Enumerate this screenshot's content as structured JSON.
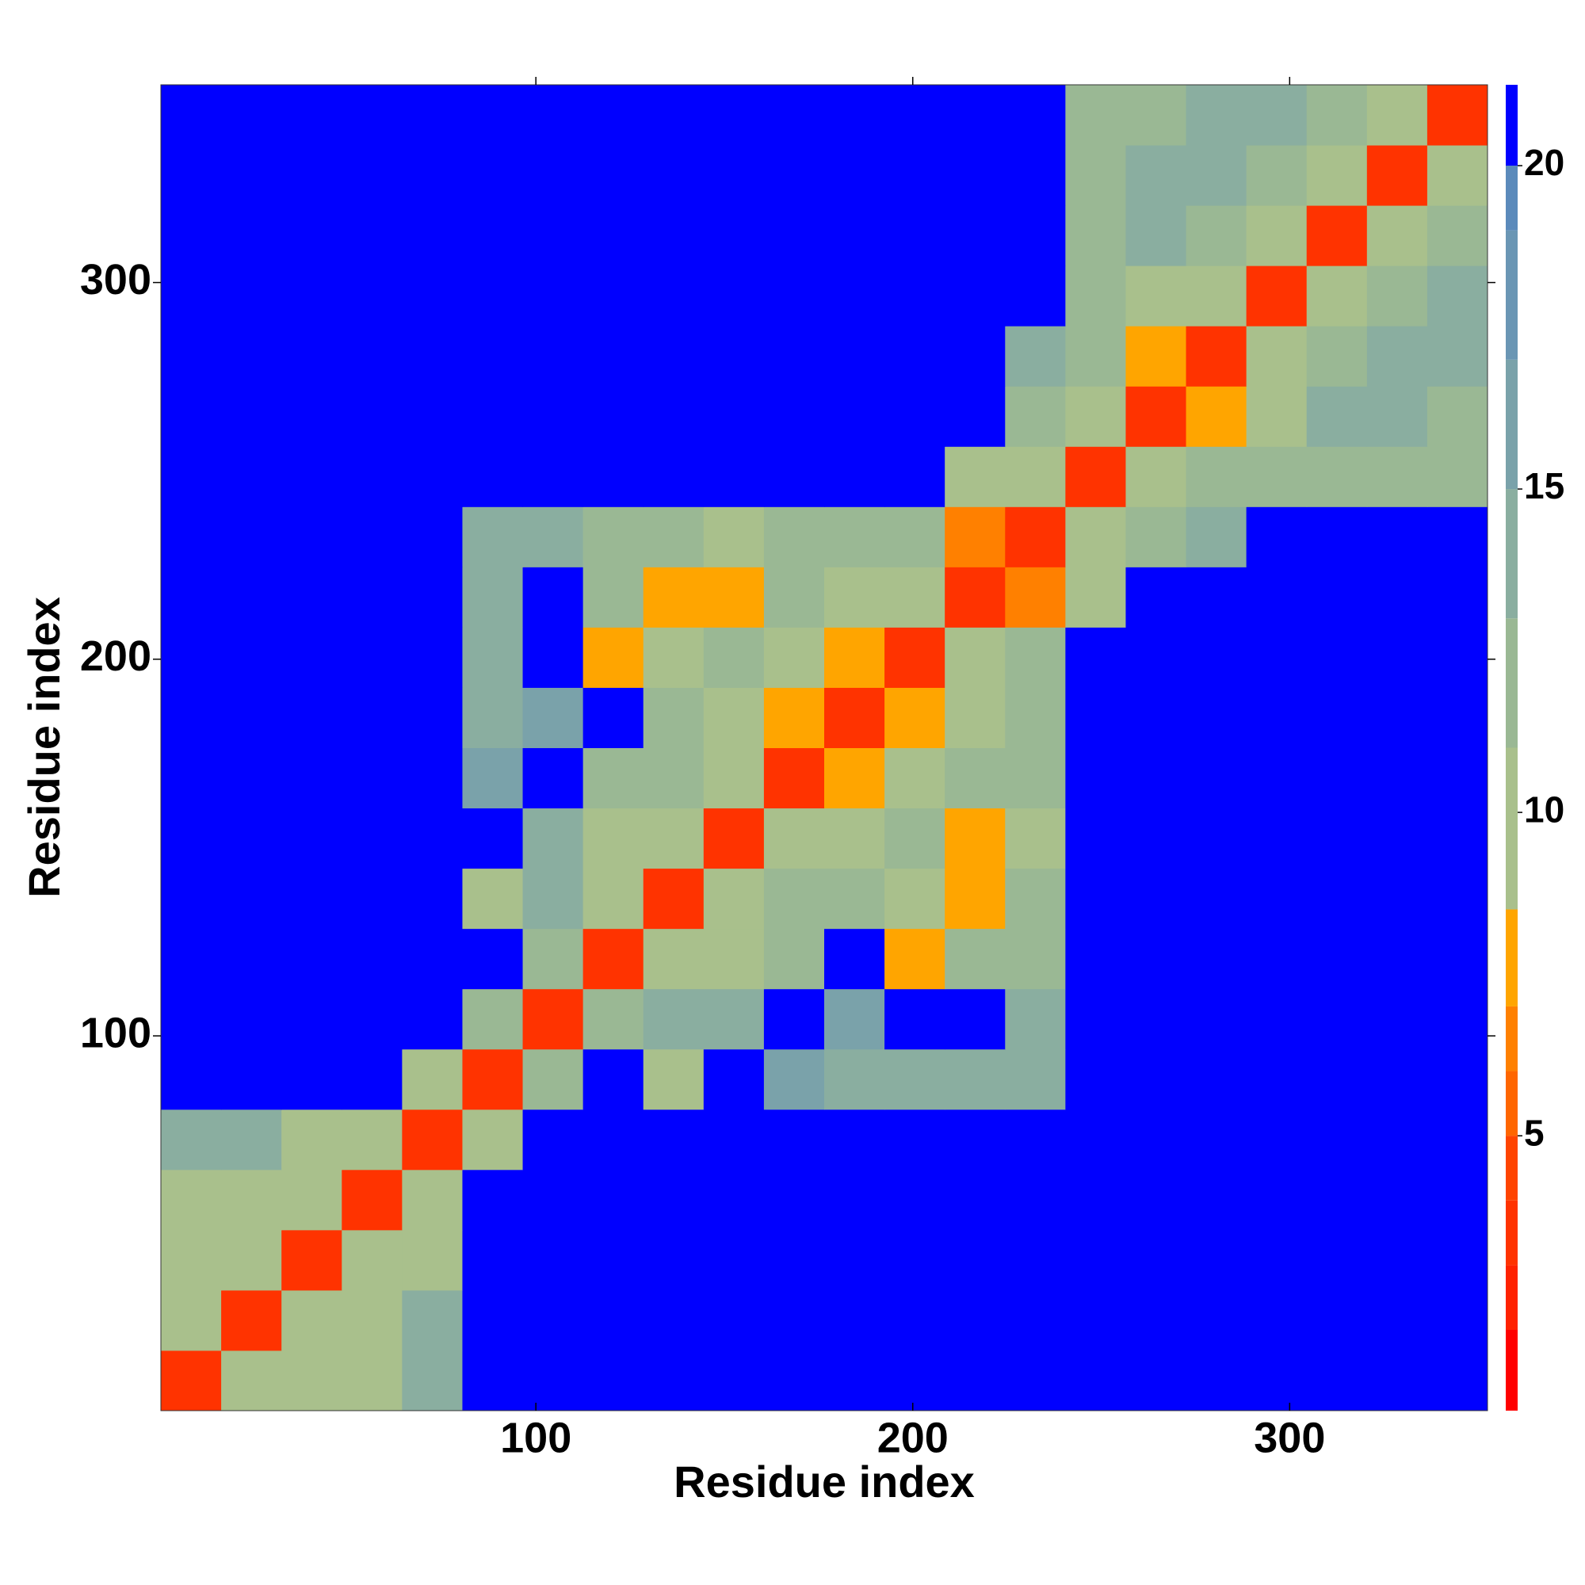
{
  "chart_data": {
    "type": "heatmap",
    "xlabel": "Residue index",
    "ylabel": "Residue index",
    "xlim": [
      0.5,
      352.5
    ],
    "ylim": [
      0.5,
      352.5
    ],
    "xticks": [
      100,
      200,
      300
    ],
    "yticks": [
      100,
      200,
      300
    ],
    "x_edges": [
      0.5,
      16.5,
      32.5,
      48.5,
      64.5,
      80.5,
      96.5,
      112.5,
      128.5,
      144.5,
      160.5,
      176.5,
      192.5,
      208.5,
      224.5,
      240.5,
      256.5,
      272.5,
      288.5,
      304.5,
      320.5,
      336.5,
      352.5
    ],
    "y_edges": [
      0.5,
      16.5,
      32.5,
      48.5,
      64.5,
      80.5,
      96.5,
      112.5,
      128.5,
      144.5,
      160.5,
      176.5,
      192.5,
      208.5,
      224.5,
      240.5,
      256.5,
      272.5,
      288.5,
      304.5,
      320.5,
      336.5,
      352.5
    ],
    "z": [
      [
        3,
        10,
        10,
        9,
        13,
        21,
        21,
        21,
        21,
        21,
        21,
        21,
        21,
        21,
        21,
        21,
        21,
        21,
        21,
        21,
        21,
        21
      ],
      [
        10,
        3,
        10,
        9,
        13,
        21,
        21,
        21,
        21,
        21,
        21,
        21,
        21,
        21,
        21,
        21,
        21,
        21,
        21,
        21,
        21,
        21
      ],
      [
        10,
        10,
        3,
        10,
        10,
        21,
        21,
        21,
        21,
        21,
        21,
        21,
        21,
        21,
        21,
        21,
        21,
        21,
        21,
        21,
        21,
        21
      ],
      [
        9,
        9,
        10,
        3,
        10,
        21,
        21,
        21,
        21,
        21,
        21,
        21,
        21,
        21,
        21,
        21,
        21,
        21,
        21,
        21,
        21,
        21
      ],
      [
        13,
        13,
        10,
        10,
        3,
        10,
        21,
        21,
        21,
        21,
        21,
        21,
        21,
        21,
        21,
        21,
        21,
        21,
        21,
        21,
        21,
        21
      ],
      [
        21,
        21,
        21,
        21,
        10,
        3,
        11,
        21,
        9,
        21,
        15,
        14,
        13,
        14,
        14,
        21,
        21,
        21,
        21,
        21,
        21,
        21
      ],
      [
        21,
        21,
        21,
        21,
        21,
        11,
        3,
        11,
        13,
        14,
        21,
        15,
        21,
        21,
        13,
        21,
        21,
        21,
        21,
        21,
        21,
        21
      ],
      [
        21,
        21,
        21,
        21,
        21,
        21,
        11,
        3,
        9,
        10,
        12,
        21,
        8,
        12,
        12,
        21,
        21,
        21,
        21,
        21,
        21,
        21
      ],
      [
        21,
        21,
        21,
        21,
        21,
        9,
        13,
        9,
        3,
        9,
        11,
        12,
        10,
        8,
        11,
        21,
        21,
        21,
        21,
        21,
        21,
        21
      ],
      [
        21,
        21,
        21,
        21,
        21,
        21,
        14,
        10,
        9,
        3,
        9,
        10,
        11,
        8,
        10,
        21,
        21,
        21,
        21,
        21,
        21,
        21
      ],
      [
        21,
        21,
        21,
        21,
        21,
        15,
        21,
        12,
        11,
        9,
        3,
        8,
        10,
        12,
        11,
        21,
        21,
        21,
        21,
        21,
        21,
        21
      ],
      [
        21,
        21,
        21,
        21,
        21,
        14,
        15,
        21,
        12,
        10,
        8,
        3,
        7,
        10,
        12,
        21,
        21,
        21,
        21,
        21,
        21,
        21
      ],
      [
        21,
        21,
        21,
        21,
        21,
        13,
        21,
        8,
        10,
        11,
        10,
        7,
        3,
        9,
        11,
        21,
        21,
        21,
        21,
        21,
        21,
        21
      ],
      [
        21,
        21,
        21,
        21,
        21,
        14,
        21,
        12,
        8,
        8,
        12,
        10,
        9,
        3,
        6,
        9,
        21,
        21,
        21,
        21,
        21,
        21
      ],
      [
        21,
        21,
        21,
        21,
        21,
        14,
        13,
        12,
        11,
        10,
        11,
        12,
        11,
        6,
        3,
        9,
        12,
        14,
        21,
        21,
        21,
        21
      ],
      [
        21,
        21,
        21,
        21,
        21,
        21,
        21,
        21,
        21,
        21,
        21,
        21,
        21,
        9,
        9,
        3,
        9,
        12,
        12,
        12,
        12,
        12
      ],
      [
        21,
        21,
        21,
        21,
        21,
        21,
        21,
        21,
        21,
        21,
        21,
        21,
        21,
        21,
        12,
        9,
        3,
        8,
        9,
        13,
        13,
        12
      ],
      [
        21,
        21,
        21,
        21,
        21,
        21,
        21,
        21,
        21,
        21,
        21,
        21,
        21,
        21,
        14,
        12,
        8,
        3,
        9,
        12,
        13,
        14
      ],
      [
        21,
        21,
        21,
        21,
        21,
        21,
        21,
        21,
        21,
        21,
        21,
        21,
        21,
        21,
        21,
        12,
        9,
        9,
        3,
        9,
        12,
        14
      ],
      [
        21,
        21,
        21,
        21,
        21,
        21,
        21,
        21,
        21,
        21,
        21,
        21,
        21,
        21,
        21,
        12,
        13,
        12,
        9,
        3,
        9,
        11
      ],
      [
        21,
        21,
        21,
        21,
        21,
        21,
        21,
        21,
        21,
        21,
        21,
        21,
        21,
        21,
        21,
        12,
        13,
        13,
        12,
        9,
        3,
        9
      ],
      [
        21,
        21,
        21,
        21,
        21,
        21,
        21,
        21,
        21,
        21,
        21,
        21,
        21,
        21,
        21,
        12,
        12,
        14,
        14,
        11,
        9,
        3
      ]
    ],
    "zlim": [
      0.75,
      21.25
    ],
    "zticks": [
      5,
      10,
      15,
      20
    ],
    "colorscale": [
      {
        "value": 0.75,
        "color": "#ff0000"
      },
      {
        "value": 2,
        "color": "#ff2200"
      },
      {
        "value": 3,
        "color": "#ff3300"
      },
      {
        "value": 4,
        "color": "#ff4400"
      },
      {
        "value": 5,
        "color": "#ff6600"
      },
      {
        "value": 6,
        "color": "#ff8000"
      },
      {
        "value": 7,
        "color": "#ffa500"
      },
      {
        "value": 8.5,
        "color": "#a9c08c"
      },
      {
        "value": 11,
        "color": "#9ab894"
      },
      {
        "value": 13,
        "color": "#8aaea0"
      },
      {
        "value": 15,
        "color": "#7aa2aa"
      },
      {
        "value": 17,
        "color": "#6a96b4"
      },
      {
        "value": 19,
        "color": "#5b8abb"
      },
      {
        "value": 20,
        "color": "#0000ff"
      }
    ]
  }
}
